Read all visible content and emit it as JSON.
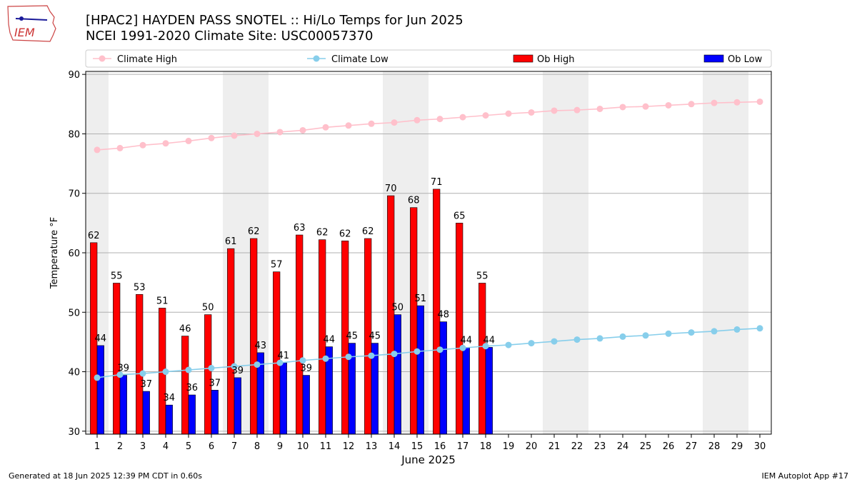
{
  "header": {
    "title": "[HPAC2] HAYDEN PASS SNOTEL :: Hi/Lo Temps for Jun 2025",
    "subtitle": "NCEI 1991-2020 Climate Site: USC00057370",
    "logo_text": "IEM"
  },
  "footer": {
    "generated": "Generated at 18 Jun 2025 12:39 PM CDT in 0.60s",
    "app": "IEM Autoplot App #17"
  },
  "colors": {
    "ob_high": "#ff0000",
    "ob_low": "#0000ff",
    "climate_high": "#ffc0cb",
    "climate_low": "#87ceeb",
    "weekend_shade": "#eeeeee",
    "grid": "#b0b0b0"
  },
  "chart_data": {
    "type": "bar",
    "xlabel": "June 2025",
    "ylabel": "Temperature °F",
    "ylim": [
      29.5,
      90.5
    ],
    "xlim": [
      0.5,
      30.5
    ],
    "yticks": [
      30,
      40,
      50,
      60,
      70,
      80,
      90
    ],
    "grid": true,
    "legend_placement": "top",
    "categories": [
      "1",
      "2",
      "3",
      "4",
      "5",
      "6",
      "7",
      "8",
      "9",
      "10",
      "11",
      "12",
      "13",
      "14",
      "15",
      "16",
      "17",
      "18",
      "19",
      "20",
      "21",
      "22",
      "23",
      "24",
      "25",
      "26",
      "27",
      "28",
      "29",
      "30"
    ],
    "shaded_days": [
      1,
      7,
      8,
      14,
      15,
      21,
      22,
      28,
      29
    ],
    "series": [
      {
        "name": "Climate High",
        "kind": "line",
        "color": "#ffc0cb",
        "values": [
          77.3,
          77.6,
          78.1,
          78.4,
          78.8,
          79.3,
          79.7,
          80.0,
          80.3,
          80.6,
          81.1,
          81.4,
          81.7,
          81.9,
          82.3,
          82.5,
          82.8,
          83.1,
          83.4,
          83.6,
          83.9,
          84.0,
          84.2,
          84.5,
          84.6,
          84.8,
          85.0,
          85.2,
          85.3,
          85.4
        ]
      },
      {
        "name": "Climate Low",
        "kind": "line",
        "color": "#87ceeb",
        "values": [
          39.0,
          39.5,
          39.7,
          40.0,
          40.3,
          40.6,
          40.9,
          41.2,
          41.5,
          41.9,
          42.2,
          42.5,
          42.7,
          43.0,
          43.4,
          43.7,
          44.0,
          44.3,
          44.5,
          44.8,
          45.1,
          45.4,
          45.6,
          45.9,
          46.1,
          46.4,
          46.6,
          46.8,
          47.1,
          47.3
        ]
      },
      {
        "name": "Ob High",
        "kind": "bar",
        "color": "#ff0000",
        "values": [
          61.7,
          54.9,
          53.0,
          50.7,
          46.0,
          49.6,
          60.7,
          62.4,
          56.8,
          63.0,
          62.2,
          62.0,
          62.4,
          69.6,
          67.6,
          70.7,
          65.0,
          54.9,
          null,
          null,
          null,
          null,
          null,
          null,
          null,
          null,
          null,
          null,
          null,
          null
        ],
        "labels": [
          "62",
          "55",
          "53",
          "51",
          "46",
          "50",
          "61",
          "62",
          "57",
          "63",
          "62",
          "62",
          "62",
          "70",
          "68",
          "71",
          "65",
          "55",
          "",
          "",
          "",
          "",
          "",
          "",
          "",
          "",
          "",
          "",
          "",
          ""
        ]
      },
      {
        "name": "Ob Low",
        "kind": "bar",
        "color": "#0000ff",
        "values": [
          44.4,
          39.4,
          36.7,
          34.4,
          36.1,
          36.9,
          39.0,
          43.2,
          41.5,
          39.4,
          44.2,
          44.8,
          44.8,
          49.6,
          51.1,
          48.4,
          44.1,
          44.1,
          null,
          null,
          null,
          null,
          null,
          null,
          null,
          null,
          null,
          null,
          null,
          null
        ],
        "labels": [
          "44",
          "39",
          "37",
          "34",
          "36",
          "37",
          "39",
          "43",
          "41",
          "39",
          "44",
          "45",
          "45",
          "50",
          "51",
          "48",
          "44",
          "44",
          "",
          "",
          "",
          "",
          "",
          "",
          "",
          "",
          "",
          "",
          "",
          ""
        ]
      }
    ]
  }
}
